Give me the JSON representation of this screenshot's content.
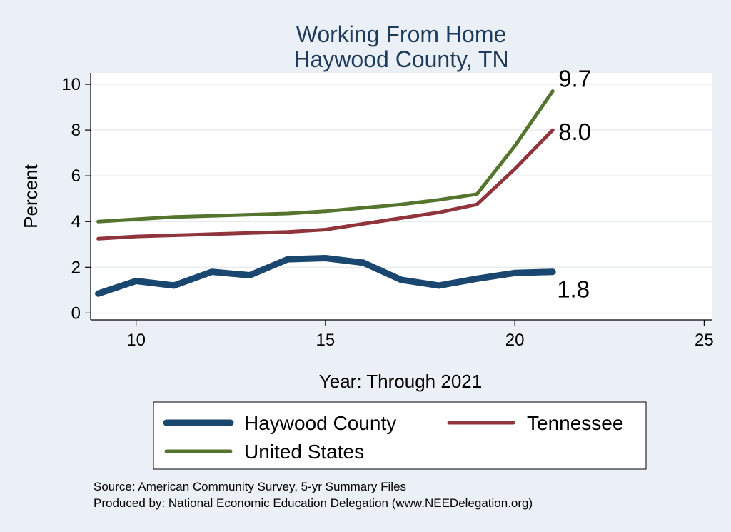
{
  "chart_data": {
    "type": "line",
    "title": [
      "Working From Home",
      "Haywood County, TN"
    ],
    "xlabel": "Year: Through 2021",
    "ylabel": "Percent",
    "xlim": [
      8.8,
      25.2
    ],
    "ylim": [
      -0.3,
      10.5
    ],
    "xticks": [
      10,
      15,
      20,
      25
    ],
    "yticks": [
      0,
      2,
      4,
      6,
      8,
      10
    ],
    "grid": true,
    "legend_position": "bottom",
    "x": [
      9,
      10,
      11,
      12,
      13,
      14,
      15,
      16,
      17,
      18,
      19,
      20,
      21
    ],
    "series": [
      {
        "name": "Haywood County",
        "color": "#1a476f",
        "values": [
          0.85,
          1.4,
          1.2,
          1.8,
          1.65,
          2.35,
          2.4,
          2.2,
          1.45,
          1.2,
          1.5,
          1.75,
          1.8
        ],
        "end_label": "1.8"
      },
      {
        "name": "Tennessee",
        "color": "#90353b",
        "values": [
          3.25,
          3.35,
          3.4,
          3.45,
          3.5,
          3.55,
          3.65,
          3.9,
          4.15,
          4.4,
          4.75,
          6.3,
          8.0
        ],
        "end_label": "8.0"
      },
      {
        "name": "United States",
        "color": "#55752f",
        "values": [
          4.0,
          4.1,
          4.2,
          4.25,
          4.3,
          4.35,
          4.45,
          4.6,
          4.75,
          4.95,
          5.2,
          7.3,
          9.7
        ],
        "end_label": "9.7"
      }
    ],
    "legend_order": [
      "Haywood County",
      "Tennessee",
      "United States"
    ]
  },
  "notes": {
    "source": "Source: American Community Survey, 5-yr Summary Files",
    "produced": "Produced by: National Economic Education Delegation (www.NEEDelegation.org)"
  }
}
